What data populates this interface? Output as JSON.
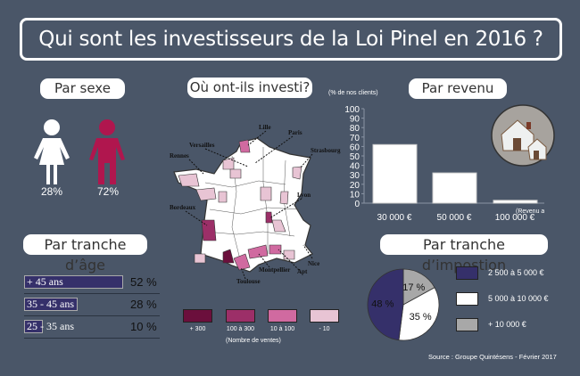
{
  "title": "Qui sont les investisseurs de la Loi Pinel en 2016 ?",
  "sexe": {
    "heading": "Par sexe",
    "female_pct": "28%",
    "male_pct": "72%",
    "female_color": "#ffffff",
    "male_color": "#b0164e"
  },
  "map": {
    "heading": "Où ont-ils investi?",
    "cities": [
      "Lille",
      "Paris",
      "Versailles",
      "Rennes",
      "Strasbourg",
      "Lyon",
      "Bordeaux",
      "Nice",
      "Montpellier",
      "Apt",
      "Toulouse"
    ],
    "legend": [
      {
        "label": "+ 300",
        "color": "#6b0f3c"
      },
      {
        "label": "100 à 300",
        "color": "#9c2f68"
      },
      {
        "label": "10 à 100",
        "color": "#d06aa0"
      },
      {
        "label": "- 10",
        "color": "#e8c4d4"
      }
    ],
    "legend_title": "(Nombre de ventes)"
  },
  "chart_data": [
    {
      "type": "bar",
      "title": "Par revenu",
      "ylabel": "(% de nos clients)",
      "xlabel": "(Revenu annuel)",
      "categories": [
        "30 000 €",
        "50 000 €",
        "100 000 €"
      ],
      "values": [
        62,
        32,
        3
      ],
      "ylim": [
        0,
        100
      ],
      "yticks": [
        0,
        10,
        20,
        30,
        40,
        50,
        60,
        70,
        80,
        90,
        100
      ],
      "bar_color": "#ffffff",
      "grid": false
    },
    {
      "type": "bar",
      "orientation": "horizontal",
      "title": "Par tranche d’âge",
      "categories": [
        "+ 45 ans",
        "35 - 45 ans",
        "25 - 35 ans"
      ],
      "values": [
        52,
        28,
        10
      ],
      "labels": [
        "52 %",
        "28 %",
        "10 %"
      ],
      "bar_color": "#35306a"
    },
    {
      "type": "pie",
      "title": "Par tranche d’impostion",
      "slices": [
        {
          "name": "+ 10 000 €",
          "value": 17,
          "label": "17 %",
          "color": "#a8a8a8"
        },
        {
          "name": "5 000 à 10 000 €",
          "value": 35,
          "label": "35 %",
          "color": "#ffffff"
        },
        {
          "name": "2 500 à 5 000 €",
          "value": 48,
          "label": "48 %",
          "color": "#35306a"
        }
      ],
      "legend": [
        "2 500 à 5 000 €",
        "5 000 à 10 000 €",
        "+ 10 000 €"
      ],
      "legend_placement": "right"
    }
  ],
  "source": "Source : Groupe Quintésens - Février 2017",
  "icons": {
    "house": "house-icon",
    "female": "female-icon",
    "male": "male-icon"
  }
}
